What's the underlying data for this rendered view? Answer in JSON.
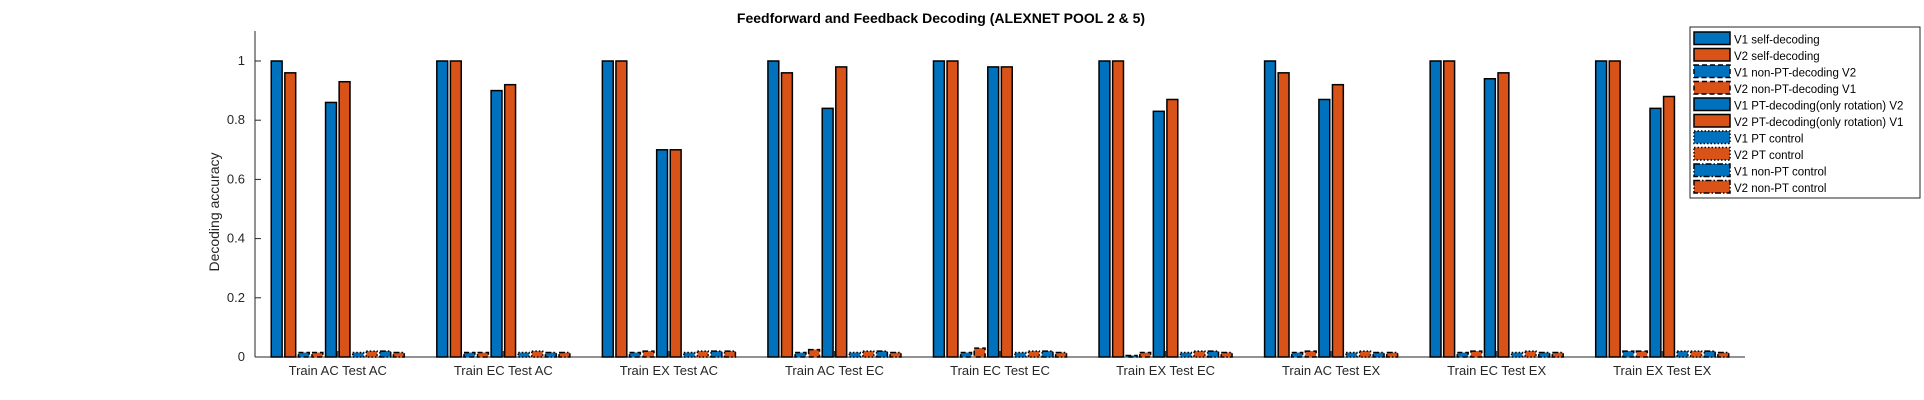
{
  "chart_data": {
    "type": "bar",
    "title": "Feedforward and Feedback Decoding (ALEXNET POOL 2 & 5)",
    "xlabel": "",
    "ylabel": "Decoding accuracy",
    "ylim": [
      0,
      1.1
    ],
    "yticks": [
      0,
      0.2,
      0.4,
      0.6,
      0.8,
      1
    ],
    "ytick_labels": [
      "0",
      "0.2",
      "0.4",
      "0.6",
      "0.8",
      "1"
    ],
    "grid": false,
    "legend_position": "top-right",
    "categories": [
      "Train AC Test AC",
      "Train EC Test AC",
      "Train EX Test AC",
      "Train AC Test EC",
      "Train EC Test EC",
      "Train EX Test EC",
      "Train AC Test EX",
      "Train EC Test EX",
      "Train EX Test EX"
    ],
    "series": [
      {
        "name": "V1 self-decoding",
        "color": "#0072BD",
        "style": "solid",
        "values": [
          1.0,
          1.0,
          1.0,
          1.0,
          1.0,
          1.0,
          1.0,
          1.0,
          1.0
        ]
      },
      {
        "name": "V2 self-decoding",
        "color": "#D95319",
        "style": "solid",
        "values": [
          0.96,
          1.0,
          1.0,
          0.96,
          1.0,
          1.0,
          0.96,
          1.0,
          1.0
        ]
      },
      {
        "name": "V1 non-PT-decoding V2",
        "color": "#0072BD",
        "style": "dashed",
        "values": [
          0.015,
          0.015,
          0.015,
          0.015,
          0.015,
          0.005,
          0.015,
          0.015,
          0.02
        ]
      },
      {
        "name": "V2 non-PT-decoding V1",
        "color": "#D95319",
        "style": "dashed",
        "values": [
          0.015,
          0.015,
          0.02,
          0.025,
          0.03,
          0.015,
          0.02,
          0.02,
          0.02
        ]
      },
      {
        "name": "V1 PT-decoding(only rotation) V2",
        "color": "#0072BD",
        "style": "solid",
        "values": [
          0.86,
          0.9,
          0.7,
          0.84,
          0.98,
          0.83,
          0.87,
          0.94,
          0.84
        ]
      },
      {
        "name": "V2 PT-decoding(only rotation) V1",
        "color": "#D95319",
        "style": "solid",
        "values": [
          0.93,
          0.92,
          0.7,
          0.98,
          0.98,
          0.87,
          0.92,
          0.96,
          0.88
        ]
      },
      {
        "name": "V1 PT control",
        "color": "#0072BD",
        "style": "dotted",
        "values": [
          0.015,
          0.015,
          0.015,
          0.015,
          0.015,
          0.015,
          0.015,
          0.015,
          0.02
        ]
      },
      {
        "name": "V2 PT control",
        "color": "#D95319",
        "style": "dotted",
        "values": [
          0.02,
          0.02,
          0.02,
          0.02,
          0.02,
          0.02,
          0.02,
          0.02,
          0.02
        ]
      },
      {
        "name": "V1 non-PT control",
        "color": "#0072BD",
        "style": "dashdot",
        "values": [
          0.02,
          0.015,
          0.02,
          0.02,
          0.02,
          0.02,
          0.015,
          0.015,
          0.02
        ]
      },
      {
        "name": "V2 non-PT control",
        "color": "#D95319",
        "style": "dashdot",
        "values": [
          0.015,
          0.015,
          0.02,
          0.015,
          0.015,
          0.015,
          0.015,
          0.015,
          0.015
        ]
      }
    ]
  }
}
